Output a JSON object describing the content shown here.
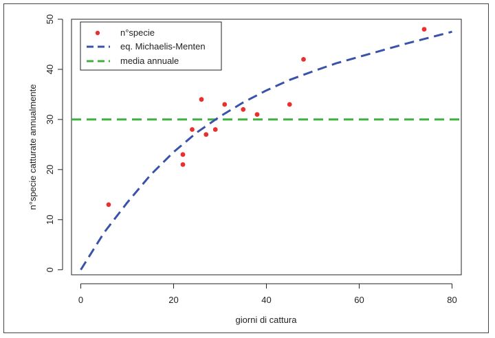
{
  "chart_data": {
    "type": "scatter",
    "title": "",
    "xlabel": "giorni di cattura",
    "ylabel": "n°specie catturate annualmente",
    "xlim": [
      -2,
      82
    ],
    "ylim": [
      -1,
      50
    ],
    "x_ticks": [
      0,
      20,
      40,
      60,
      80
    ],
    "y_ticks": [
      0,
      10,
      20,
      30,
      40,
      50
    ],
    "grid": false,
    "legend_position": "top-left",
    "legend": [
      {
        "label": "n°specie",
        "kind": "point",
        "color": "#e8302e"
      },
      {
        "label": "eq. Michaelis-Menten",
        "kind": "dashed-line",
        "color": "#3a52a8"
      },
      {
        "label": "media annuale",
        "kind": "dashed-line",
        "color": "#3db03d"
      }
    ],
    "points": {
      "name": "n°specie",
      "color": "#e8302e",
      "x": [
        6,
        22,
        22,
        24,
        26,
        27,
        29,
        31,
        35,
        38,
        45,
        48,
        74
      ],
      "y": [
        13,
        23,
        21,
        28,
        34,
        27,
        28,
        33,
        32,
        31,
        33,
        42,
        48
      ]
    },
    "michaelis_menten": {
      "name": "eq. Michaelis-Menten",
      "color": "#3a52a8",
      "x": [
        0,
        5,
        10,
        15,
        20,
        25,
        30,
        35,
        40,
        45,
        50,
        55,
        60,
        65,
        70,
        75,
        80
      ],
      "y": [
        0,
        7.4,
        13.4,
        18.9,
        23.5,
        27.4,
        30.6,
        33.4,
        35.8,
        37.9,
        39.6,
        41.2,
        42.5,
        43.8,
        45.1,
        46.3,
        47.5
      ]
    },
    "media_annuale": {
      "name": "media annuale",
      "color": "#3db03d",
      "value": 30
    }
  }
}
